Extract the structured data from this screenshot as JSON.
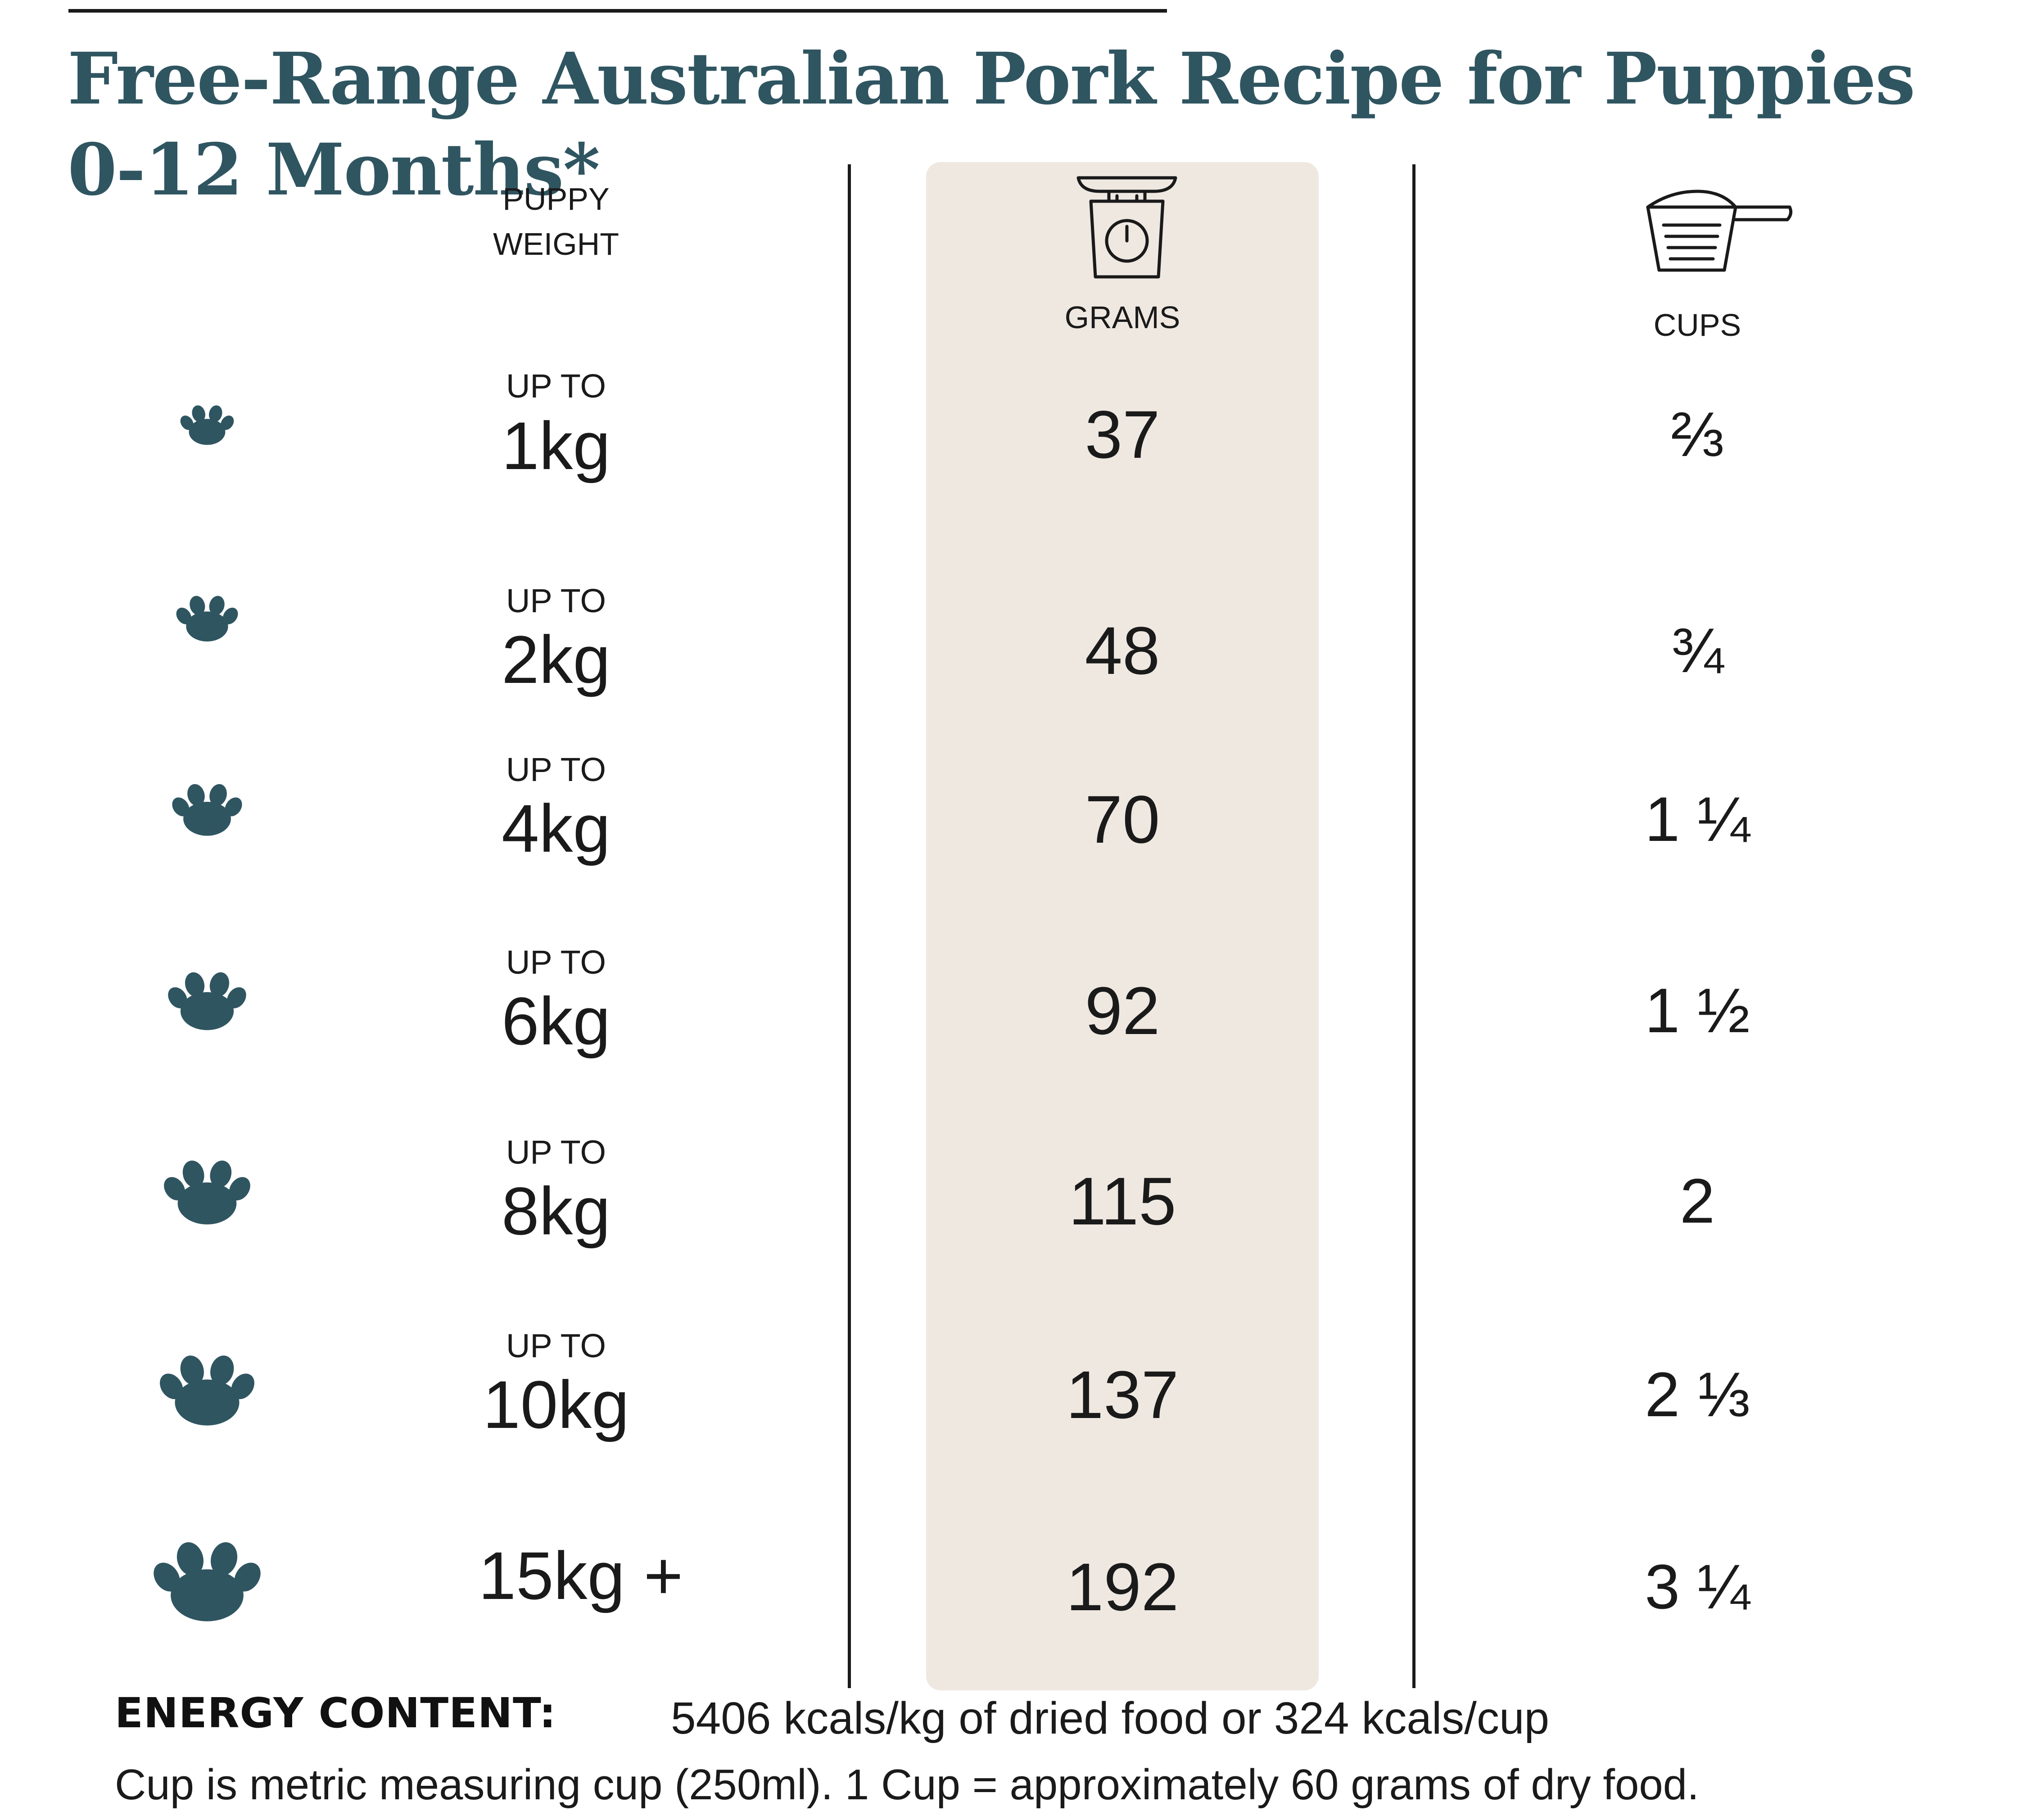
{
  "title": "Free-Range Australian Pork Recipe for Puppies 0-12 Months*",
  "colors": {
    "brand": "#2f5561",
    "band": "#efe8e1",
    "text": "#1a1a1a"
  },
  "headers": {
    "weight_line1": "PUPPY",
    "weight_line2": "WEIGHT",
    "grams": "GRAMS",
    "cups": "CUPS",
    "grams_icon": "kitchen-scale-icon",
    "cups_icon": "measuring-cup-icon"
  },
  "rows": [
    {
      "prefix": "UP TO",
      "weight": "1kg",
      "grams": "37",
      "cups": "⅔"
    },
    {
      "prefix": "UP TO",
      "weight": "2kg",
      "grams": "48",
      "cups": "¾"
    },
    {
      "prefix": "UP TO",
      "weight": "4kg",
      "grams": "70",
      "cups": "1 ¼"
    },
    {
      "prefix": "UP TO",
      "weight": "6kg",
      "grams": "92",
      "cups": "1 ½"
    },
    {
      "prefix": "UP TO",
      "weight": "8kg",
      "grams": "115",
      "cups": "2"
    },
    {
      "prefix": "UP TO",
      "weight": "10kg",
      "grams": "137",
      "cups": "2 ⅓"
    },
    {
      "prefix": "",
      "weight": "15kg +",
      "grams": "192",
      "cups": "3 ¼"
    }
  ],
  "energy": {
    "label": "ENERGY CONTENT:",
    "value": "5406 kcals/kg of dried food or 324 kcals/cup"
  },
  "footnote": "Cup is metric measuring cup (250ml). 1 Cup = approximately 60 grams of dry food."
}
